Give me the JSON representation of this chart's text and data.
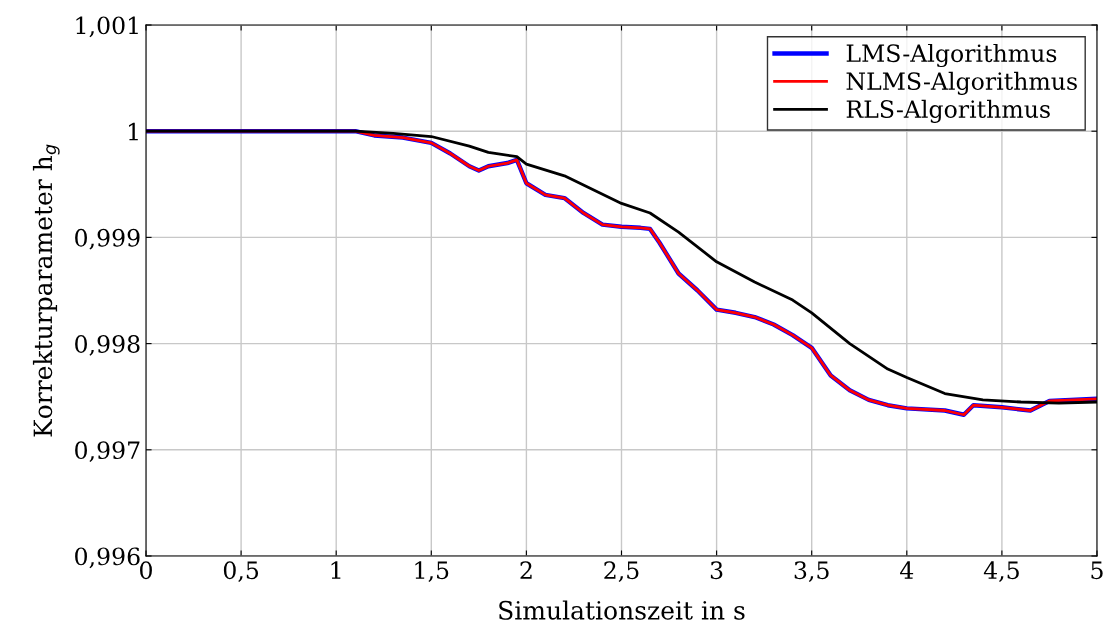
{
  "chart_data": {
    "type": "line",
    "xlabel": "Simulationszeit in s",
    "ylabel": "Korrekturparameter h$_{g}$",
    "xlim": [
      0,
      5
    ],
    "ylim": [
      0.996,
      1.001
    ],
    "xticks": [
      0,
      {
        "value": 0.5,
        "label": "0,5"
      },
      1,
      {
        "value": 1.5,
        "label": "1,5"
      },
      2,
      {
        "value": 2.5,
        "label": "2,5"
      },
      3,
      {
        "value": 3.5,
        "label": "3,5"
      },
      4,
      {
        "value": 4.5,
        "label": "4,5"
      },
      5
    ],
    "yticks": [
      {
        "value": 0.996,
        "label": "0,996"
      },
      {
        "value": 0.997,
        "label": "0,997"
      },
      {
        "value": 0.998,
        "label": "0,998"
      },
      {
        "value": 0.999,
        "label": "0,999"
      },
      1,
      {
        "value": 1.001,
        "label": "1,001"
      }
    ],
    "grid": true,
    "legend": "top right",
    "marker": "none",
    "line_style": "solid",
    "series": [
      {
        "name": "LMS-Algorithmus",
        "color": "#0000ff",
        "x": [
          0,
          1.1,
          1.2,
          1.35,
          1.5,
          1.6,
          1.7,
          1.75,
          1.8,
          1.9,
          1.95,
          2.0,
          2.1,
          2.2,
          2.3,
          2.4,
          2.5,
          2.6,
          2.65,
          2.7,
          2.8,
          2.9,
          3.0,
          3.1,
          3.2,
          3.3,
          3.4,
          3.5,
          3.6,
          3.7,
          3.8,
          3.9,
          4.0,
          4.2,
          4.3,
          4.35,
          4.5,
          4.65,
          4.75,
          5.0
        ],
        "values": [
          1.0,
          1.0,
          0.99996,
          0.99994,
          0.99989,
          0.99979,
          0.99967,
          0.99963,
          0.99967,
          0.9997,
          0.99973,
          0.99951,
          0.9994,
          0.99937,
          0.99923,
          0.99912,
          0.9991,
          0.99909,
          0.99908,
          0.99895,
          0.99866,
          0.9985,
          0.99832,
          0.99829,
          0.99825,
          0.99818,
          0.99808,
          0.99796,
          0.9977,
          0.99756,
          0.99747,
          0.99742,
          0.99739,
          0.99737,
          0.99733,
          0.99742,
          0.9974,
          0.99737,
          0.99746,
          0.99748
        ]
      },
      {
        "name": "NLMS-Algorithmus",
        "color": "#ff0000",
        "x": [
          0,
          1.1,
          1.2,
          1.35,
          1.5,
          1.6,
          1.7,
          1.75,
          1.8,
          1.9,
          1.95,
          2.0,
          2.1,
          2.2,
          2.3,
          2.4,
          2.5,
          2.6,
          2.65,
          2.7,
          2.8,
          2.9,
          3.0,
          3.1,
          3.2,
          3.3,
          3.4,
          3.5,
          3.6,
          3.7,
          3.8,
          3.9,
          4.0,
          4.2,
          4.3,
          4.35,
          4.5,
          4.65,
          4.75,
          5.0
        ],
        "values": [
          1.0,
          1.0,
          0.99996,
          0.99994,
          0.99989,
          0.99979,
          0.99967,
          0.99963,
          0.99967,
          0.9997,
          0.99973,
          0.99951,
          0.9994,
          0.99937,
          0.99923,
          0.99912,
          0.9991,
          0.99909,
          0.99908,
          0.99895,
          0.99866,
          0.9985,
          0.99832,
          0.99829,
          0.99825,
          0.99818,
          0.99808,
          0.99796,
          0.9977,
          0.99756,
          0.99747,
          0.99742,
          0.99739,
          0.99737,
          0.99733,
          0.99742,
          0.9974,
          0.99737,
          0.99746,
          0.99748
        ]
      },
      {
        "name": "RLS-Algorithmus",
        "color": "#000000",
        "x": [
          0,
          1.1,
          1.3,
          1.5,
          1.7,
          1.8,
          1.95,
          2.0,
          2.2,
          2.5,
          2.65,
          2.8,
          3.0,
          3.2,
          3.4,
          3.5,
          3.7,
          3.9,
          4.0,
          4.2,
          4.4,
          4.6,
          4.8,
          5.0
        ],
        "values": [
          1.0,
          1.0,
          0.99998,
          0.99995,
          0.99986,
          0.9998,
          0.99976,
          0.99969,
          0.99958,
          0.99932,
          0.99923,
          0.99905,
          0.99877,
          0.99858,
          0.99841,
          0.99829,
          0.998,
          0.99776,
          0.99768,
          0.99753,
          0.99747,
          0.99745,
          0.99744,
          0.99745
        ]
      }
    ]
  }
}
